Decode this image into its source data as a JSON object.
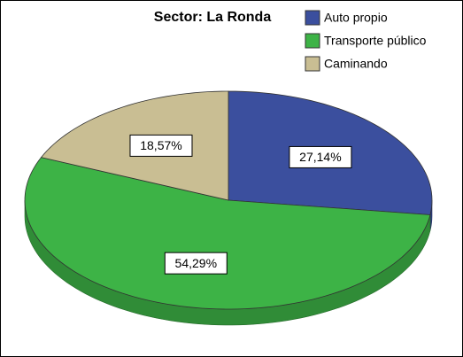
{
  "chart_data": {
    "type": "pie",
    "title": "Sector: La Ronda",
    "categories": [
      "Auto propio",
      "Transporte público",
      "Caminando"
    ],
    "values": [
      27.14,
      54.29,
      18.57
    ],
    "value_labels": [
      "27,14%",
      "54,29%",
      "18,57%"
    ],
    "colors": [
      "#3b4f9e",
      "#3db346",
      "#c9be93"
    ]
  }
}
